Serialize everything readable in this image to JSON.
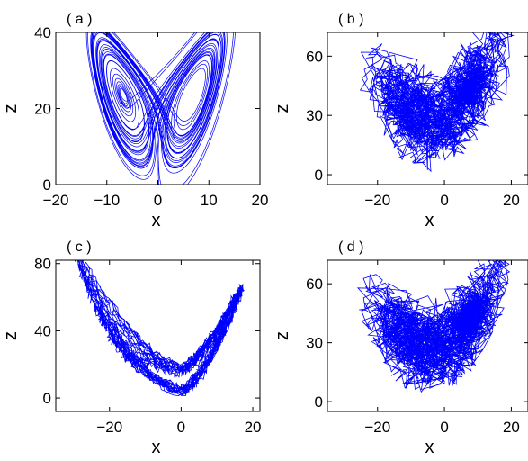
{
  "chart_data": [
    {
      "type": "line",
      "panel_label": "( a )",
      "xlabel": "x",
      "ylabel": "z",
      "xlim": [
        -20,
        20
      ],
      "ylim": [
        0,
        40
      ],
      "xticks": [
        -20,
        -10,
        0,
        10,
        20
      ],
      "xtick_labels": [
        "−20",
        "−10",
        "0",
        "10",
        "20"
      ],
      "yticks": [
        0,
        20,
        40
      ],
      "ytick_labels": [
        "0",
        "20",
        "40"
      ],
      "series": [
        {
          "style": "smooth lorenz attractor (butterfly), two lobes centred near (−8, 20) and (6, 20), x range about −15 to 15, z range about 3 to 37",
          "x": [
            -13.6,
            -8.0,
            -3.5,
            0.0,
            3.5,
            8.0,
            14.3
          ],
          "y": [
            36.5,
            20.0,
            10.0,
            3.0,
            10.0,
            20.0,
            37.0
          ]
        }
      ]
    },
    {
      "type": "line",
      "panel_label": "( b )",
      "xlabel": "x",
      "ylabel": "z",
      "xlim": [
        -35,
        25
      ],
      "ylim": [
        -5,
        72
      ],
      "xticks": [
        -20,
        0,
        20
      ],
      "xtick_labels": [
        "−20",
        "0",
        "20"
      ],
      "yticks": [
        0,
        30,
        60
      ],
      "ytick_labels": [
        "0",
        "30",
        "60"
      ],
      "series": [
        {
          "style": "noisy trajectory, dense cloud from about (−27, 5) to (22, 50) with excursions up to z ≈ 62",
          "x": [
            -27,
            -15,
            -5,
            5,
            15,
            22
          ],
          "y": [
            45,
            35,
            15,
            10,
            40,
            62
          ]
        }
      ]
    },
    {
      "type": "line",
      "panel_label": "( c )",
      "xlabel": "x",
      "ylabel": "z",
      "xlim": [
        -35,
        22
      ],
      "ylim": [
        -8,
        82
      ],
      "xticks": [
        -20,
        0,
        20
      ],
      "xtick_labels": [
        "−20",
        "0",
        "20"
      ],
      "yticks": [
        0,
        40,
        80
      ],
      "ytick_labels": [
        "0",
        "40",
        "80"
      ],
      "series": [
        {
          "style": "smooth looping trajectory forming a V / bowl shape, from about (−30, 77) down to (−5, 0) and up to (17, 55)",
          "x": [
            -30,
            -20,
            -10,
            -5,
            5,
            17
          ],
          "y": [
            77,
            50,
            20,
            0,
            20,
            55
          ]
        }
      ]
    },
    {
      "type": "line",
      "panel_label": "( d )",
      "xlabel": "x",
      "ylabel": "z",
      "xlim": [
        -35,
        25
      ],
      "ylim": [
        -5,
        72
      ],
      "xticks": [
        -20,
        0,
        20
      ],
      "xtick_labels": [
        "−20",
        "0",
        "20"
      ],
      "yticks": [
        0,
        30,
        60
      ],
      "ytick_labels": [
        "0",
        "30",
        "60"
      ],
      "series": [
        {
          "style": "noisy trajectory, dense cloud from about (−25, 5) to (23, 50) with excursions up to z ≈ 69",
          "x": [
            -25,
            -15,
            -5,
            5,
            15,
            23
          ],
          "y": [
            69,
            35,
            10,
            5,
            40,
            65
          ]
        }
      ]
    }
  ],
  "line_color": "#0000ff",
  "panel_label_text": "( a )"
}
